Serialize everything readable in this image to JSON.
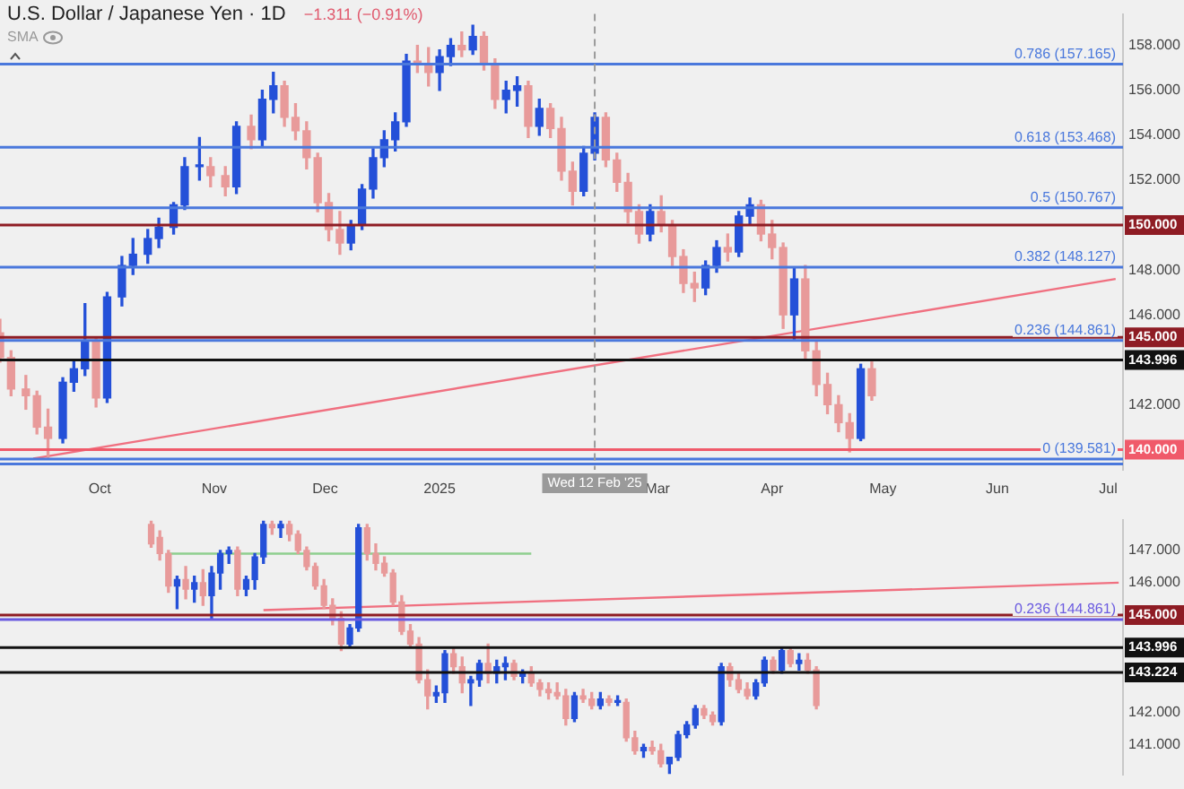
{
  "chart_data": [
    {
      "type": "candlestick",
      "title": "U.S. Dollar / Japanese Yen · 1D",
      "subtitle": "−1.311 (−0.91%)",
      "annotations": [
        "SMA"
      ],
      "x": [
        "2024-09-04",
        "2024-09-07",
        "2024-09-11",
        "2024-09-14",
        "2024-09-17",
        "2024-09-21",
        "2024-09-24",
        "2024-09-27",
        "2024-09-30",
        "2024-10-03",
        "2024-10-07",
        "2024-10-10",
        "2024-10-14",
        "2024-10-17",
        "2024-10-21",
        "2024-10-24",
        "2024-10-28",
        "2024-10-31",
        "2024-11-04",
        "2024-11-07",
        "2024-11-11",
        "2024-11-14",
        "2024-11-17",
        "2024-11-20",
        "2024-11-23",
        "2024-11-26",
        "2024-11-29",
        "2024-12-02",
        "2024-12-05",
        "2024-12-08",
        "2024-12-11",
        "2024-12-14",
        "2024-12-17",
        "2024-12-20",
        "2024-12-23",
        "2024-12-26",
        "2024-12-29",
        "2025-01-01",
        "2025-01-04",
        "2025-01-07",
        "2025-01-10",
        "2025-01-13",
        "2025-01-16",
        "2025-01-19",
        "2025-01-22",
        "2025-01-25",
        "2025-01-28",
        "2025-01-31",
        "2025-02-03",
        "2025-02-06",
        "2025-02-09",
        "2025-02-12",
        "2025-02-15",
        "2025-02-18",
        "2025-02-21",
        "2025-02-24",
        "2025-02-27",
        "2025-03-02",
        "2025-03-05",
        "2025-03-08",
        "2025-03-11",
        "2025-03-14",
        "2025-03-17",
        "2025-03-20",
        "2025-03-23",
        "2025-03-26",
        "2025-03-29",
        "2025-04-01",
        "2025-04-04",
        "2025-04-07",
        "2025-04-10",
        "2025-04-13",
        "2025-04-16",
        "2025-04-19",
        "2025-04-22",
        "2025-04-25",
        "2025-04-28"
      ],
      "ohlc": [
        [
          145.2,
          145.8,
          143.9,
          144.1
        ],
        [
          144.1,
          144.4,
          142.4,
          142.7
        ],
        [
          142.7,
          143.3,
          141.8,
          142.4
        ],
        [
          142.4,
          142.6,
          140.7,
          141.0
        ],
        [
          141.0,
          141.8,
          139.6,
          140.5
        ],
        [
          140.5,
          143.2,
          140.3,
          143.0
        ],
        [
          143.0,
          144.0,
          142.6,
          143.6
        ],
        [
          143.6,
          146.5,
          143.3,
          144.8
        ],
        [
          144.8,
          145.0,
          141.9,
          142.3
        ],
        [
          142.3,
          147.0,
          142.1,
          146.8
        ],
        [
          146.8,
          148.6,
          146.4,
          148.2
        ],
        [
          148.2,
          149.4,
          147.8,
          148.7
        ],
        [
          148.7,
          149.8,
          148.3,
          149.4
        ],
        [
          149.4,
          150.3,
          149.0,
          149.9
        ],
        [
          149.9,
          151.0,
          149.6,
          150.9
        ],
        [
          150.9,
          153.0,
          150.7,
          152.6
        ],
        [
          152.6,
          153.9,
          152.0,
          152.6
        ],
        [
          152.6,
          153.0,
          151.7,
          152.2
        ],
        [
          152.2,
          152.6,
          151.3,
          151.7
        ],
        [
          151.7,
          154.6,
          151.4,
          154.4
        ],
        [
          154.4,
          154.9,
          153.4,
          153.8
        ],
        [
          153.8,
          156.0,
          153.5,
          155.6
        ],
        [
          155.6,
          156.8,
          155.0,
          156.2
        ],
        [
          156.2,
          156.4,
          154.4,
          154.8
        ],
        [
          154.8,
          155.4,
          153.8,
          154.2
        ],
        [
          154.2,
          154.6,
          152.5,
          153.0
        ],
        [
          153.0,
          153.2,
          150.6,
          151.0
        ],
        [
          151.0,
          151.4,
          149.3,
          149.8
        ],
        [
          149.8,
          150.6,
          148.7,
          149.2
        ],
        [
          149.2,
          150.2,
          148.9,
          150.0
        ],
        [
          150.0,
          151.8,
          149.8,
          151.6
        ],
        [
          151.6,
          153.4,
          151.2,
          153.0
        ],
        [
          153.0,
          154.2,
          152.6,
          153.8
        ],
        [
          153.8,
          155.0,
          153.3,
          154.6
        ],
        [
          154.6,
          157.6,
          154.4,
          157.3
        ],
        [
          157.3,
          158.0,
          156.8,
          157.2
        ],
        [
          157.2,
          157.9,
          156.2,
          156.8
        ],
        [
          156.8,
          157.8,
          156.0,
          157.5
        ],
        [
          157.5,
          158.3,
          157.1,
          158.0
        ],
        [
          158.0,
          158.6,
          157.5,
          157.8
        ],
        [
          157.8,
          158.9,
          157.6,
          158.4
        ],
        [
          158.4,
          158.6,
          156.9,
          157.2
        ],
        [
          157.2,
          157.4,
          155.2,
          155.6
        ],
        [
          155.6,
          156.4,
          155.0,
          156.0
        ],
        [
          156.0,
          156.6,
          155.3,
          156.2
        ],
        [
          156.2,
          156.4,
          153.9,
          154.4
        ],
        [
          154.4,
          155.6,
          154.0,
          155.2
        ],
        [
          155.2,
          155.4,
          153.9,
          154.3
        ],
        [
          154.3,
          154.8,
          152.0,
          152.4
        ],
        [
          152.4,
          152.8,
          150.9,
          151.5
        ],
        [
          151.5,
          153.5,
          151.3,
          153.2
        ],
        [
          153.2,
          155.0,
          152.9,
          154.8
        ],
        [
          154.8,
          155.0,
          152.6,
          152.9
        ],
        [
          152.9,
          153.2,
          151.5,
          151.9
        ],
        [
          151.9,
          152.3,
          150.1,
          150.6
        ],
        [
          150.6,
          150.9,
          149.2,
          149.6
        ],
        [
          149.6,
          150.9,
          149.3,
          150.6
        ],
        [
          150.6,
          151.3,
          149.7,
          150.0
        ],
        [
          150.0,
          150.2,
          148.2,
          148.6
        ],
        [
          148.6,
          148.9,
          147.0,
          147.4
        ],
        [
          147.4,
          147.9,
          146.6,
          147.2
        ],
        [
          147.2,
          148.4,
          146.9,
          148.2
        ],
        [
          148.2,
          149.3,
          147.9,
          149.0
        ],
        [
          149.0,
          149.6,
          148.4,
          148.8
        ],
        [
          148.8,
          150.6,
          148.6,
          150.4
        ],
        [
          150.4,
          151.2,
          150.0,
          150.9
        ],
        [
          150.9,
          151.1,
          149.3,
          149.6
        ],
        [
          149.6,
          150.2,
          148.5,
          149.0
        ],
        [
          149.0,
          149.2,
          145.4,
          146.0
        ],
        [
          146.0,
          148.1,
          144.9,
          147.6
        ],
        [
          147.6,
          148.2,
          144.0,
          144.4
        ],
        [
          144.4,
          144.8,
          142.4,
          142.9
        ],
        [
          142.9,
          143.4,
          141.6,
          142.0
        ],
        [
          142.0,
          142.4,
          140.8,
          141.2
        ],
        [
          141.2,
          141.6,
          139.9,
          140.5
        ],
        [
          140.5,
          143.8,
          140.4,
          143.6
        ],
        [
          143.6,
          143.9,
          142.2,
          142.4
        ]
      ],
      "colors": [
        "#e89a9a",
        "#e89a9a",
        "#e89a9a",
        "#e89a9a",
        "#e89a9a",
        "#2450d8",
        "#2450d8",
        "#2450d8",
        "#e89a9a",
        "#2450d8",
        "#2450d8",
        "#2450d8",
        "#2450d8",
        "#2450d8",
        "#2450d8",
        "#2450d8",
        "#2450d8",
        "#e89a9a",
        "#e89a9a",
        "#2450d8",
        "#e89a9a",
        "#2450d8",
        "#2450d8",
        "#e89a9a",
        "#e89a9a",
        "#e89a9a",
        "#e89a9a",
        "#e89a9a",
        "#e89a9a",
        "#2450d8",
        "#2450d8",
        "#2450d8",
        "#2450d8",
        "#2450d8",
        "#2450d8",
        "#e89a9a",
        "#e89a9a",
        "#2450d8",
        "#2450d8",
        "#e89a9a",
        "#2450d8",
        "#e89a9a",
        "#e89a9a",
        "#2450d8",
        "#2450d8",
        "#e89a9a",
        "#2450d8",
        "#e89a9a",
        "#e89a9a",
        "#e89a9a",
        "#2450d8",
        "#2450d8",
        "#e89a9a",
        "#e89a9a",
        "#e89a9a",
        "#e89a9a",
        "#2450d8",
        "#e89a9a",
        "#e89a9a",
        "#e89a9a",
        "#e89a9a",
        "#2450d8",
        "#2450d8",
        "#e89a9a",
        "#2450d8",
        "#2450d8",
        "#e89a9a",
        "#e89a9a",
        "#e89a9a",
        "#2450d8",
        "#e89a9a",
        "#e89a9a",
        "#e89a9a",
        "#e89a9a",
        "#e89a9a",
        "#2450d8",
        "#e89a9a"
      ],
      "series": [
        {
          "type": "line",
          "color": "#f07080",
          "x": [
            "2024-09-13",
            "2025-07-03"
          ],
          "values": [
            139.6,
            147.6
          ]
        }
      ],
      "xlim": [
        "2024-09-04",
        "2025-07-05"
      ],
      "xticks": [
        {
          "value": "2024-10-01",
          "label": "Oct"
        },
        {
          "value": "2024-11-01",
          "label": "Nov"
        },
        {
          "value": "2024-12-01",
          "label": "Dec"
        },
        {
          "value": "2025-01-01",
          "label": "2025"
        },
        {
          "value": "2025-03-01",
          "label": "Mar"
        },
        {
          "value": "2025-04-01",
          "label": "Apr"
        },
        {
          "value": "2025-05-01",
          "label": "May"
        },
        {
          "value": "2025-06-01",
          "label": "Jun"
        },
        {
          "value": "2025-07-01",
          "label": "Jul"
        }
      ],
      "ylim": [
        139.1,
        159.4
      ],
      "yticks": [
        {
          "value": 142,
          "label": "142.000"
        },
        {
          "value": 146,
          "label": "146.000"
        },
        {
          "value": 148,
          "label": "148.000"
        },
        {
          "value": 152,
          "label": "152.000"
        },
        {
          "value": 154,
          "label": "154.000"
        },
        {
          "value": 156,
          "label": "156.000"
        },
        {
          "value": 158,
          "label": "158.000"
        }
      ],
      "ref_lines": [
        {
          "axis": "y",
          "value": 157.165,
          "label": "0.786 (157.165)",
          "color": "#4a78dc"
        },
        {
          "axis": "y",
          "value": 153.468,
          "label": "0.618 (153.468)",
          "color": "#4a78dc"
        },
        {
          "axis": "y",
          "value": 150.767,
          "label": "0.5 (150.767)",
          "color": "#4a78dc"
        },
        {
          "axis": "y",
          "value": 150,
          "label": "150.000",
          "color": "#8e1c24"
        },
        {
          "axis": "y",
          "value": 148.127,
          "label": "0.382 (148.127)",
          "color": "#4a78dc"
        },
        {
          "axis": "y",
          "value": 145,
          "label": "145.000",
          "color": "#8e1c24"
        },
        {
          "axis": "y",
          "value": 144.861,
          "label": "0.236 (144.861)",
          "color": "#4a78dc"
        },
        {
          "axis": "y",
          "value": 143.996,
          "label": "143.996",
          "color": "#111111"
        },
        {
          "axis": "y",
          "value": 140,
          "label": "140.000",
          "color": "#f05a6a"
        },
        {
          "axis": "y",
          "value": 139.581,
          "label": "0 (139.581)",
          "color": "#4a78dc"
        },
        {
          "axis": "y",
          "value": 139.36,
          "color": "#4a78dc"
        },
        {
          "axis": "x",
          "value": "2025-02-12",
          "label": "Wed 12 Feb '25",
          "color": "#9a9a9a",
          "line_style": "dashed"
        }
      ],
      "grid": false,
      "legend": false
    },
    {
      "type": "candlestick",
      "categories": [
        null,
        null,
        null,
        null,
        null,
        null,
        null,
        null,
        null,
        null,
        null,
        null,
        null,
        null,
        null,
        null,
        null,
        null,
        null,
        null,
        null,
        null,
        null,
        null,
        null,
        null,
        null,
        null,
        null,
        null,
        null,
        null,
        null,
        null,
        null,
        null,
        null,
        null,
        null,
        null,
        null,
        null,
        null,
        null,
        null,
        null,
        null,
        null,
        null,
        null,
        null,
        null,
        null,
        null,
        null,
        null,
        null,
        null,
        null,
        null,
        null,
        null,
        null,
        null,
        null,
        null,
        null,
        null,
        null,
        null,
        null,
        null,
        null,
        null,
        null,
        null,
        null,
        null,
        null,
        null,
        null,
        null,
        null,
        null,
        null,
        null,
        null,
        null,
        null,
        null,
        null,
        null,
        null,
        null,
        null,
        null,
        null,
        null,
        null,
        null,
        null,
        null,
        null,
        null,
        null,
        null,
        null,
        null,
        null,
        null,
        null,
        null,
        null,
        null,
        null,
        null,
        null,
        null,
        null,
        null,
        null,
        null,
        null,
        null,
        null,
        null,
        null,
        null,
        null,
        null
      ],
      "ohlc": [
        null,
        null,
        null,
        null,
        null,
        null,
        null,
        null,
        null,
        null,
        null,
        null,
        null,
        null,
        null,
        null,
        null,
        [
          147.8,
          147.9,
          147.1,
          147.2
        ],
        [
          147.4,
          147.6,
          146.7,
          146.9
        ],
        [
          146.9,
          147.0,
          145.7,
          145.9
        ],
        [
          145.9,
          146.2,
          145.2,
          146.1
        ],
        [
          146.1,
          146.5,
          145.5,
          145.8
        ],
        [
          145.8,
          146.2,
          145.4,
          146.0
        ],
        [
          146.0,
          146.4,
          145.3,
          145.6
        ],
        [
          145.6,
          146.5,
          144.9,
          146.3
        ],
        [
          146.3,
          147.0,
          145.8,
          146.9
        ],
        [
          146.9,
          147.1,
          146.6,
          147.0
        ],
        [
          147.0,
          147.1,
          145.6,
          145.8
        ],
        [
          145.8,
          146.2,
          145.6,
          146.1
        ],
        [
          146.1,
          146.9,
          145.8,
          146.8
        ],
        [
          146.8,
          147.9,
          146.6,
          147.8
        ],
        [
          147.8,
          147.9,
          147.5,
          147.7
        ],
        [
          147.7,
          147.9,
          147.4,
          147.8
        ],
        [
          147.8,
          147.9,
          147.3,
          147.5
        ],
        [
          147.5,
          147.6,
          146.9,
          147.0
        ],
        [
          147.0,
          147.1,
          146.4,
          146.5
        ],
        [
          146.5,
          146.6,
          145.8,
          145.9
        ],
        [
          145.9,
          146.1,
          145.2,
          145.3
        ],
        [
          145.3,
          145.5,
          144.7,
          144.9
        ],
        [
          144.9,
          145.1,
          143.9,
          144.1
        ],
        [
          144.1,
          144.7,
          144.0,
          144.6
        ],
        [
          144.6,
          147.8,
          144.5,
          147.7
        ],
        [
          147.7,
          147.8,
          146.7,
          146.9
        ],
        [
          146.9,
          147.2,
          146.4,
          146.6
        ],
        [
          146.6,
          146.8,
          146.2,
          146.3
        ],
        [
          146.3,
          146.4,
          145.3,
          145.4
        ],
        [
          145.4,
          145.6,
          144.4,
          144.5
        ],
        [
          144.5,
          144.7,
          144.0,
          144.1
        ],
        [
          144.1,
          144.3,
          142.9,
          143.0
        ],
        [
          143.0,
          143.3,
          142.1,
          142.5
        ],
        [
          142.5,
          142.8,
          142.3,
          142.6
        ],
        [
          142.6,
          143.9,
          142.3,
          143.8
        ],
        [
          143.8,
          144.0,
          143.2,
          143.4
        ],
        [
          143.4,
          143.7,
          142.6,
          142.9
        ],
        [
          142.9,
          143.1,
          142.2,
          143.0
        ],
        [
          143.0,
          143.6,
          142.8,
          143.5
        ],
        [
          143.5,
          144.1,
          142.9,
          143.2
        ],
        [
          143.2,
          143.6,
          142.9,
          143.4
        ],
        [
          143.4,
          143.7,
          143.0,
          143.5
        ],
        [
          143.5,
          143.6,
          143.0,
          143.1
        ],
        [
          143.1,
          143.3,
          142.9,
          143.2
        ],
        [
          143.2,
          143.4,
          142.8,
          142.9
        ],
        [
          142.9,
          143.0,
          142.5,
          142.7
        ],
        [
          142.7,
          142.9,
          142.4,
          142.6
        ],
        [
          142.6,
          142.9,
          142.4,
          142.5
        ],
        [
          142.5,
          142.7,
          141.6,
          141.8
        ],
        [
          141.8,
          142.6,
          141.7,
          142.5
        ],
        [
          142.5,
          142.7,
          142.3,
          142.4
        ],
        [
          142.4,
          142.6,
          142.1,
          142.2
        ],
        [
          142.2,
          142.6,
          142.1,
          142.4
        ],
        [
          142.4,
          142.5,
          142.2,
          142.3
        ],
        [
          142.3,
          142.5,
          142.2,
          142.3
        ],
        [
          142.3,
          142.4,
          141.1,
          141.2
        ],
        [
          141.2,
          141.4,
          140.7,
          140.8
        ],
        [
          140.8,
          141.0,
          140.6,
          140.9
        ],
        [
          140.9,
          141.1,
          140.7,
          140.8
        ],
        [
          140.8,
          141.0,
          140.3,
          140.4
        ],
        [
          140.4,
          140.6,
          140.1,
          140.6
        ],
        [
          140.6,
          141.4,
          140.5,
          141.3
        ],
        [
          141.3,
          141.7,
          141.2,
          141.6
        ],
        [
          141.6,
          142.2,
          141.5,
          142.1
        ],
        [
          142.1,
          142.2,
          141.8,
          141.9
        ],
        [
          141.9,
          142.0,
          141.6,
          141.7
        ],
        [
          141.7,
          143.5,
          141.6,
          143.4
        ],
        [
          143.4,
          143.5,
          142.8,
          143.0
        ],
        [
          143.0,
          143.2,
          142.6,
          142.7
        ],
        [
          142.7,
          142.9,
          142.4,
          142.5
        ],
        [
          142.5,
          143.0,
          142.4,
          142.9
        ],
        [
          142.9,
          143.7,
          142.8,
          143.6
        ],
        [
          143.6,
          143.7,
          143.2,
          143.3
        ],
        [
          143.3,
          144.0,
          143.2,
          143.9
        ],
        [
          143.9,
          144.0,
          143.4,
          143.5
        ],
        [
          143.5,
          143.8,
          143.3,
          143.6
        ],
        [
          143.6,
          143.8,
          143.2,
          143.3
        ],
        [
          143.3,
          143.4,
          142.1,
          142.2
        ],
        null,
        null,
        null,
        null,
        null,
        null,
        null,
        null,
        null,
        null,
        null,
        null,
        null,
        null,
        null,
        null,
        null,
        null,
        null,
        null,
        null,
        null,
        null,
        null,
        null,
        null,
        null,
        null,
        null,
        null,
        null,
        null,
        null,
        null,
        null
      ],
      "colors": [
        null,
        null,
        null,
        null,
        null,
        null,
        null,
        null,
        null,
        null,
        null,
        null,
        null,
        null,
        null,
        null,
        null,
        "#e89a9a",
        "#e89a9a",
        "#e89a9a",
        "#2450d8",
        "#e89a9a",
        "#2450d8",
        "#e89a9a",
        "#2450d8",
        "#2450d8",
        "#2450d8",
        "#e89a9a",
        "#2450d8",
        "#2450d8",
        "#2450d8",
        "#e89a9a",
        "#2450d8",
        "#e89a9a",
        "#e89a9a",
        "#e89a9a",
        "#e89a9a",
        "#e89a9a",
        "#e89a9a",
        "#e89a9a",
        "#2450d8",
        "#2450d8",
        "#e89a9a",
        "#e89a9a",
        "#e89a9a",
        "#e89a9a",
        "#e89a9a",
        "#e89a9a",
        "#e89a9a",
        "#e89a9a",
        "#2450d8",
        "#2450d8",
        "#e89a9a",
        "#e89a9a",
        "#2450d8",
        "#2450d8",
        "#e89a9a",
        "#2450d8",
        "#2450d8",
        "#e89a9a",
        "#2450d8",
        "#e89a9a",
        "#e89a9a",
        "#e89a9a",
        "#e89a9a",
        "#e89a9a",
        "#2450d8",
        "#e89a9a",
        "#e89a9a",
        "#2450d8",
        "#e89a9a",
        "#2450d8",
        "#e89a9a",
        "#e89a9a",
        "#2450d8",
        "#e89a9a",
        "#e89a9a",
        "#2450d8",
        "#2450d8",
        "#2450d8",
        "#2450d8",
        "#e89a9a",
        "#e89a9a",
        "#2450d8",
        "#e89a9a",
        "#e89a9a",
        "#e89a9a",
        "#2450d8",
        "#2450d8",
        "#e89a9a",
        "#2450d8",
        "#e89a9a",
        "#2450d8",
        "#e89a9a",
        "#e89a9a",
        null,
        null,
        null,
        null,
        null,
        null,
        null,
        null,
        null,
        null,
        null,
        null,
        null,
        null,
        null,
        null,
        null,
        null,
        null,
        null,
        null,
        null,
        null,
        null,
        null,
        null,
        null,
        null,
        null,
        null,
        null,
        null,
        null,
        null,
        null
      ],
      "series": [
        {
          "type": "line",
          "color": "#f07080",
          "values": [
            null,
            null,
            null,
            null,
            null,
            null,
            null,
            null,
            null,
            null,
            null,
            null,
            null,
            null,
            null,
            null,
            null,
            null,
            null,
            null,
            null,
            null,
            null,
            null,
            null,
            null,
            null,
            null,
            null,
            null,
            145.15,
            null,
            null,
            null,
            null,
            null,
            null,
            null,
            null,
            null,
            null,
            null,
            null,
            null,
            null,
            null,
            null,
            null,
            null,
            null,
            null,
            null,
            null,
            null,
            null,
            null,
            null,
            null,
            null,
            null,
            null,
            null,
            null,
            null,
            null,
            null,
            null,
            null,
            null,
            null,
            null,
            null,
            null,
            null,
            null,
            null,
            null,
            null,
            null,
            null,
            null,
            null,
            null,
            null,
            null,
            null,
            null,
            null,
            null,
            null,
            null,
            null,
            null,
            null,
            null,
            null,
            null,
            null,
            null,
            null,
            null,
            null,
            null,
            null,
            null,
            null,
            null,
            null,
            null,
            null,
            null,
            null,
            null,
            null,
            null,
            null,
            null,
            null,
            null,
            null,
            null,
            null,
            null,
            null,
            null,
            null,
            null,
            null,
            null,
            146.0
          ]
        },
        {
          "type": "line",
          "color": "#8fcf8f",
          "values": [
            null,
            null,
            null,
            null,
            null,
            null,
            null,
            null,
            null,
            null,
            null,
            null,
            null,
            null,
            null,
            null,
            null,
            null,
            null,
            146.9,
            null,
            null,
            null,
            null,
            null,
            null,
            null,
            null,
            null,
            null,
            null,
            null,
            null,
            null,
            null,
            null,
            null,
            null,
            null,
            null,
            null,
            null,
            null,
            null,
            null,
            null,
            null,
            null,
            null,
            null,
            null,
            null,
            null,
            null,
            null,
            null,
            null,
            null,
            null,
            null,
            null,
            146.9,
            null,
            null,
            null,
            null,
            null,
            null,
            null,
            null,
            null,
            null,
            null,
            null,
            null,
            null,
            null,
            null,
            null,
            null,
            null,
            null,
            null,
            null,
            null,
            null,
            null,
            null,
            null,
            null,
            null,
            null,
            null,
            null,
            null,
            null,
            null,
            null,
            null,
            null,
            null,
            null,
            null,
            null,
            null,
            null,
            null,
            null,
            null,
            null,
            null,
            null,
            null,
            null,
            null,
            null,
            null,
            null,
            null,
            null,
            null,
            null,
            null,
            null,
            null,
            null,
            null,
            null,
            null,
            null
          ]
        }
      ],
      "ylim": [
        140.05,
        147.95
      ],
      "yticks": [
        {
          "value": 141,
          "label": "141.000"
        },
        {
          "value": 142,
          "label": "142.000"
        },
        {
          "value": 146,
          "label": "146.000"
        },
        {
          "value": 147,
          "label": "147.000"
        }
      ],
      "ref_lines": [
        {
          "axis": "y",
          "value": 145,
          "label": "145.000",
          "color": "#8e1c24"
        },
        {
          "axis": "y",
          "value": 144.861,
          "label": "0.236 (144.861)",
          "color": "#6a5ae0"
        },
        {
          "axis": "y",
          "value": 143.996,
          "label": "143.996",
          "color": "#111111"
        },
        {
          "axis": "y",
          "value": 143.224,
          "label": "143.224",
          "color": "#111111"
        }
      ],
      "tick_labels": "y",
      "grid": false,
      "legend": false
    }
  ]
}
